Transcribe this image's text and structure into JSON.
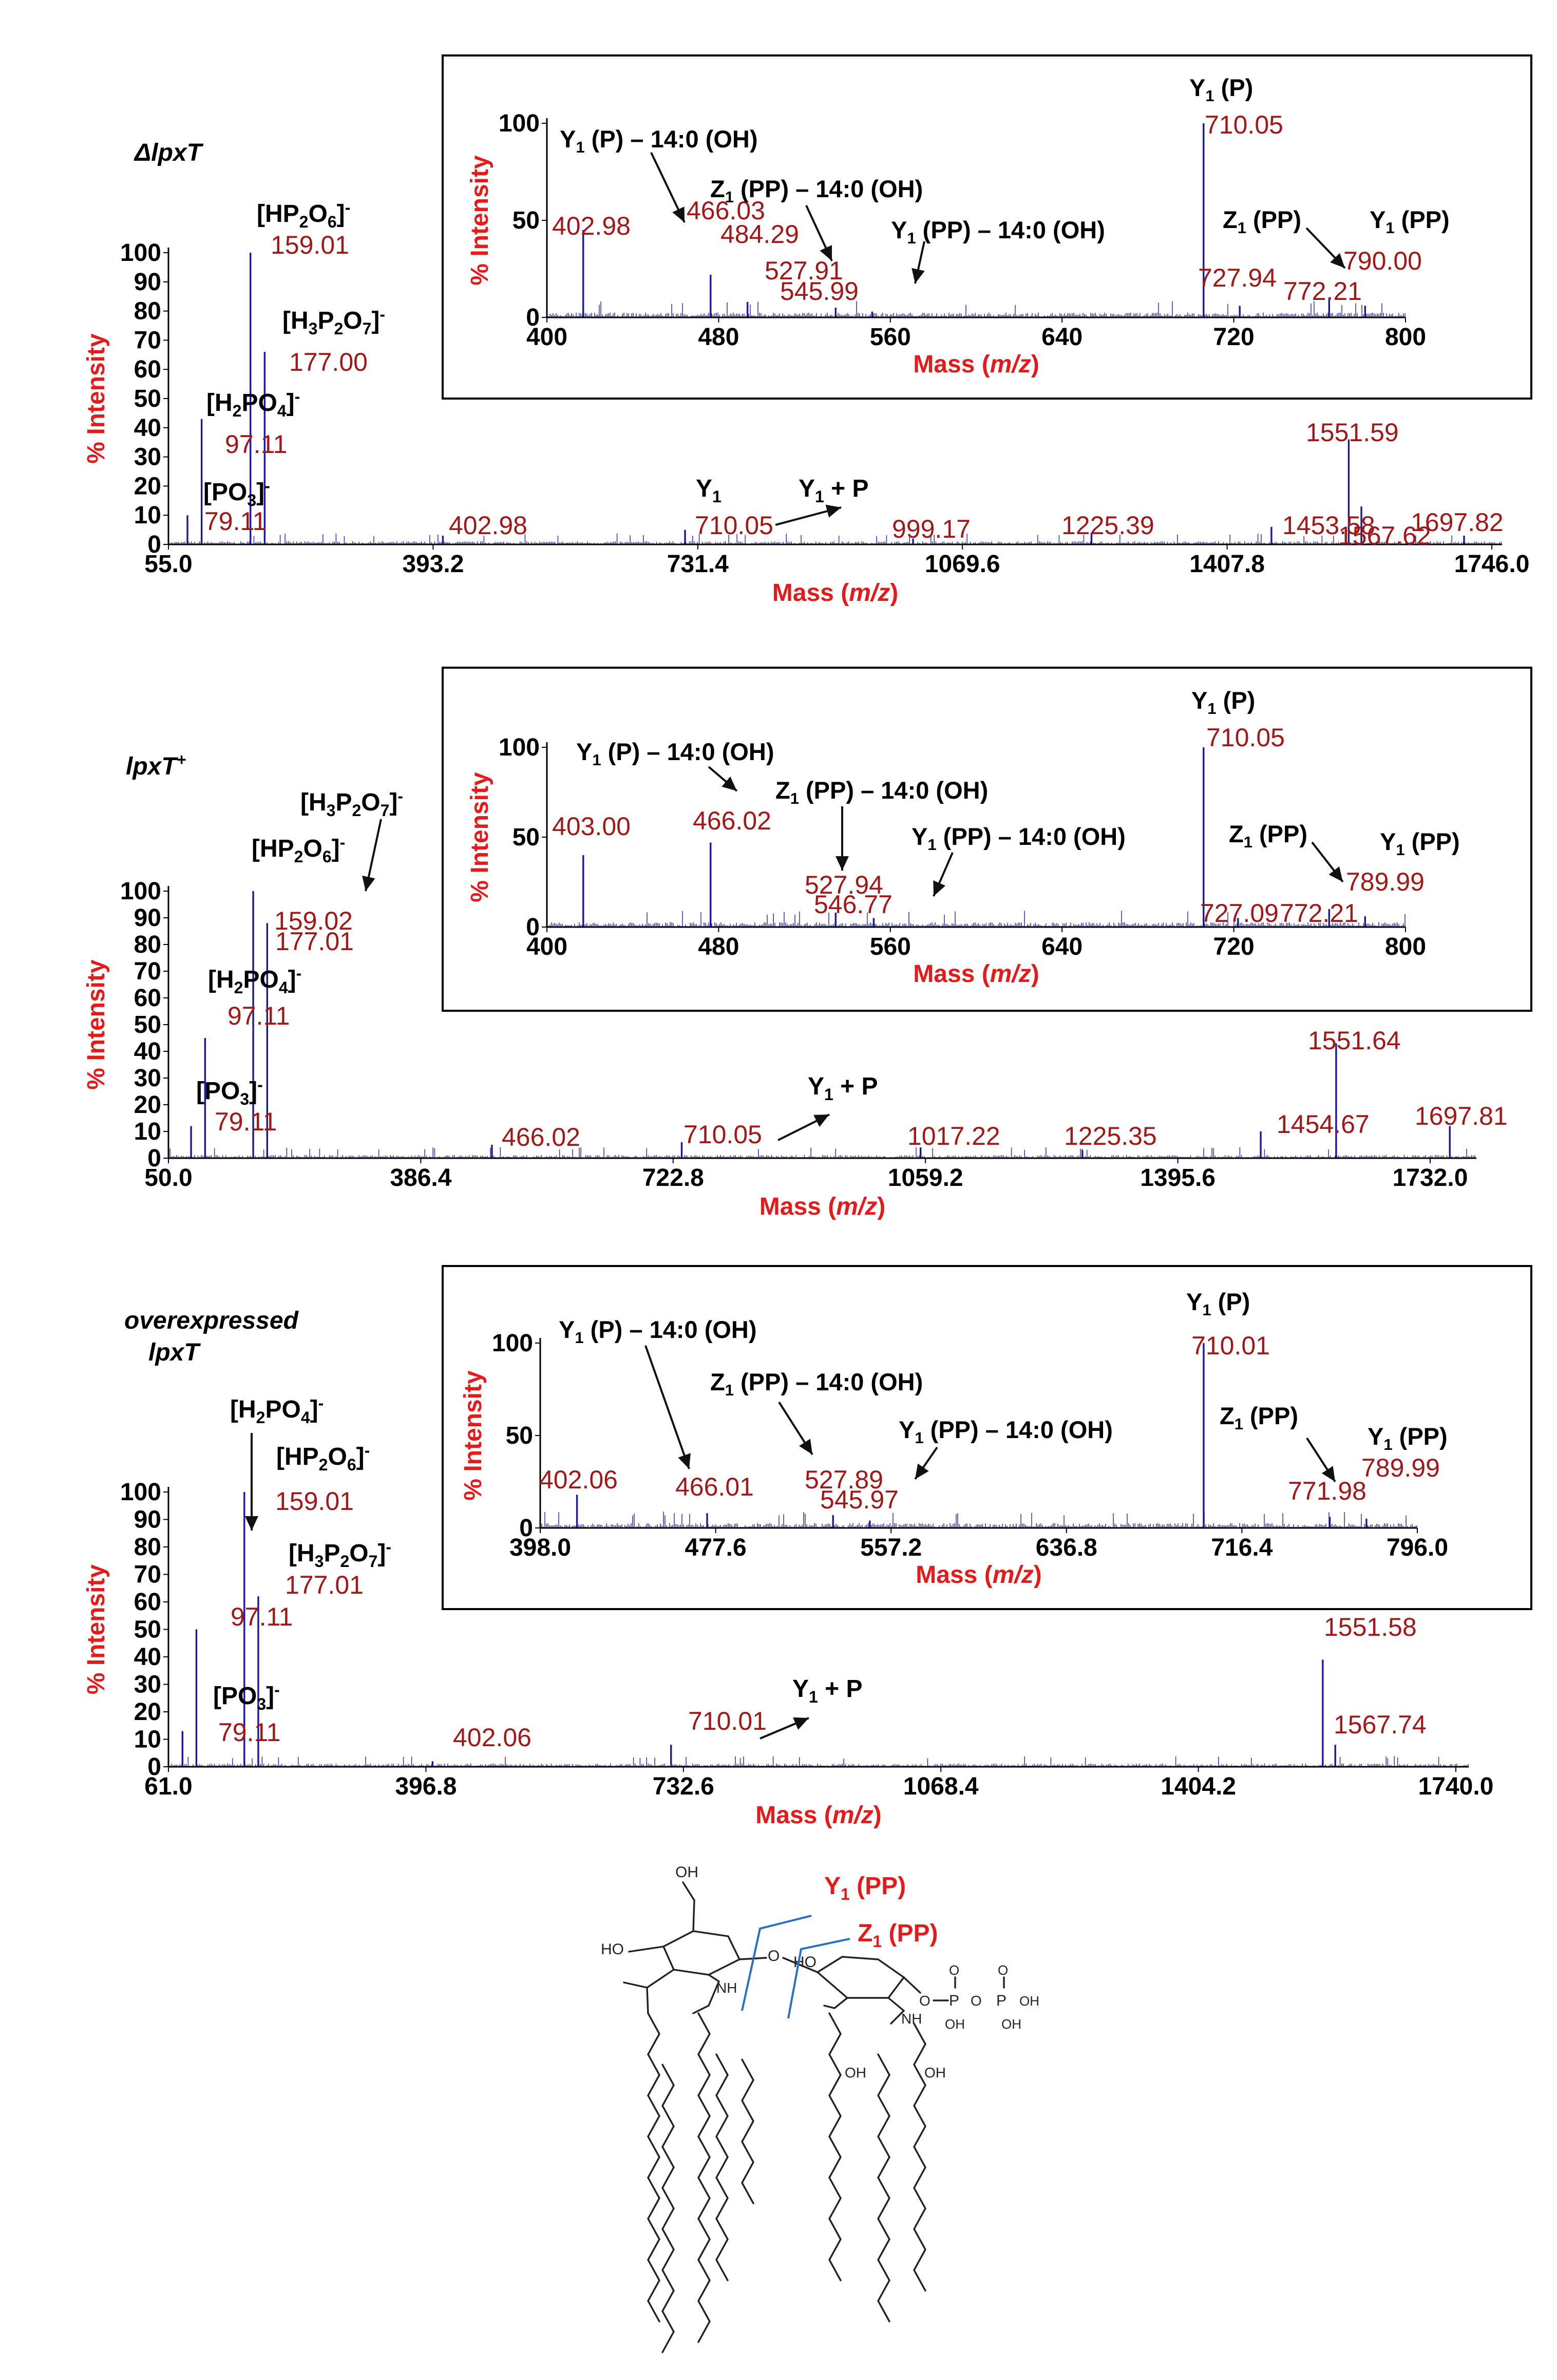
{
  "colors": {
    "spectrum": "#1a1a9a",
    "peak_label": "#a11818",
    "axis_title": "#e31b1b",
    "text": "#000000",
    "cleavage_line": "#2a6ec7",
    "structure": "#222222"
  },
  "chart_data": [
    {
      "type": "line",
      "title": "ΔlpxT",
      "xlabel": "Mass (m/z)",
      "ylabel": "% Intensity",
      "xlim": [
        55.0,
        1746.0
      ],
      "ylim": [
        0,
        100
      ],
      "x_ticks": [
        "55.0",
        "393.2",
        "731.4",
        "1069.6",
        "1407.8",
        "1746.0"
      ],
      "y_ticks": [
        "0",
        "10",
        "20",
        "30",
        "40",
        "50",
        "60",
        "70",
        "80",
        "90",
        "100"
      ],
      "peaks": [
        {
          "x": 79.11,
          "y": 10,
          "label": "79.11"
        },
        {
          "x": 97.11,
          "y": 43,
          "label": "97.11"
        },
        {
          "x": 159.01,
          "y": 100,
          "label": "159.01"
        },
        {
          "x": 177.0,
          "y": 66,
          "label": "177.00"
        },
        {
          "x": 402.98,
          "y": 3,
          "label": "402.98"
        },
        {
          "x": 710.05,
          "y": 5,
          "label": "710.05"
        },
        {
          "x": 999.17,
          "y": 2,
          "label": "999.17"
        },
        {
          "x": 1225.39,
          "y": 4,
          "label": "1225.39"
        },
        {
          "x": 1453.58,
          "y": 6,
          "label": "1453.58"
        },
        {
          "x": 1551.59,
          "y": 36,
          "label": "1551.59"
        },
        {
          "x": 1567.62,
          "y": 13,
          "label": "1567.62"
        },
        {
          "x": 1697.82,
          "y": 3,
          "label": "1697.82"
        }
      ],
      "annotations": [
        {
          "text": "[HP2O6]-"
        },
        {
          "text": "[H3P2O7]-"
        },
        {
          "text": "[H2PO4]-"
        },
        {
          "text": "[PO3]-"
        },
        {
          "text": "Y1"
        },
        {
          "text": "Y1 + P"
        }
      ],
      "inset": {
        "xlabel": "Mass (m/z)",
        "ylabel": "% Intensity",
        "xlim": [
          385,
          810
        ],
        "ylim": [
          0,
          100
        ],
        "x_ticks": [
          "400",
          "480",
          "560",
          "640",
          "720",
          "800"
        ],
        "y_ticks": [
          "0",
          "50",
          "100"
        ],
        "peaks": [
          {
            "x": 402.98,
            "y": 45,
            "label": "402.98"
          },
          {
            "x": 466.03,
            "y": 22,
            "label": "466.03"
          },
          {
            "x": 484.29,
            "y": 8,
            "label": "484.29"
          },
          {
            "x": 527.91,
            "y": 5,
            "label": "527.91"
          },
          {
            "x": 545.99,
            "y": 3,
            "label": "545.99"
          },
          {
            "x": 710.05,
            "y": 100,
            "label": "710.05"
          },
          {
            "x": 727.94,
            "y": 6,
            "label": "727.94"
          },
          {
            "x": 772.21,
            "y": 10,
            "label": "772.21"
          },
          {
            "x": 790.0,
            "y": 6,
            "label": "790.00"
          }
        ],
        "annotations": [
          {
            "text": "Y1 (P) – 14:0 (OH)"
          },
          {
            "text": "Z1 (PP) – 14:0 (OH)"
          },
          {
            "text": "Y1 (PP) – 14:0 (OH)"
          },
          {
            "text": "Y1 (P)"
          },
          {
            "text": "Z1 (PP)"
          },
          {
            "text": "Y1 (PP)"
          }
        ]
      }
    },
    {
      "type": "line",
      "title": "lpxT+",
      "xlabel": "Mass (m/z)",
      "ylabel": "% Intensity",
      "xlim": [
        50.0,
        1732.0
      ],
      "ylim": [
        0,
        100
      ],
      "x_ticks": [
        "50.0",
        "386.4",
        "722.8",
        "1059.2",
        "1395.6",
        "1732.0"
      ],
      "y_ticks": [
        "0",
        "10",
        "20",
        "30",
        "40",
        "50",
        "60",
        "70",
        "80",
        "90",
        "100"
      ],
      "peaks": [
        {
          "x": 79.11,
          "y": 12,
          "label": "79.11"
        },
        {
          "x": 97.11,
          "y": 45,
          "label": "97.11"
        },
        {
          "x": 159.02,
          "y": 100,
          "label": "159.02"
        },
        {
          "x": 177.01,
          "y": 88,
          "label": "177.01"
        },
        {
          "x": 466.02,
          "y": 5,
          "label": "466.02"
        },
        {
          "x": 710.05,
          "y": 6,
          "label": "710.05"
        },
        {
          "x": 1017.22,
          "y": 4,
          "label": "1017.22"
        },
        {
          "x": 1225.35,
          "y": 3,
          "label": "1225.35"
        },
        {
          "x": 1454.67,
          "y": 10,
          "label": "1454.67"
        },
        {
          "x": 1551.64,
          "y": 43,
          "label": "1551.64"
        },
        {
          "x": 1697.81,
          "y": 12,
          "label": "1697.81"
        }
      ],
      "annotations": [
        {
          "text": "[H3P2O7]-"
        },
        {
          "text": "[HP2O6]-"
        },
        {
          "text": "[H2PO4]-"
        },
        {
          "text": "[PO3]-"
        },
        {
          "text": "Y1 + P"
        }
      ],
      "inset": {
        "xlabel": "Mass (m/z)",
        "ylabel": "% Intensity",
        "xlim": [
          385,
          810
        ],
        "ylim": [
          0,
          100
        ],
        "x_ticks": [
          "400",
          "480",
          "560",
          "640",
          "720",
          "800"
        ],
        "y_ticks": [
          "0",
          "50",
          "100"
        ],
        "peaks": [
          {
            "x": 403.0,
            "y": 40,
            "label": "403.00"
          },
          {
            "x": 466.02,
            "y": 47,
            "label": "466.02"
          },
          {
            "x": 527.94,
            "y": 8,
            "label": "527.94"
          },
          {
            "x": 546.77,
            "y": 5,
            "label": "546.77"
          },
          {
            "x": 710.05,
            "y": 100,
            "label": "710.05"
          },
          {
            "x": 727.09,
            "y": 5,
            "label": "727.09"
          },
          {
            "x": 772.21,
            "y": 10,
            "label": "772.21"
          },
          {
            "x": 789.99,
            "y": 6,
            "label": "789.99"
          }
        ],
        "annotations": [
          {
            "text": "Y1 (P) – 14:0 (OH)"
          },
          {
            "text": "Z1 (PP) – 14:0 (OH)"
          },
          {
            "text": "Y1 (PP) – 14:0 (OH)"
          },
          {
            "text": "Y1 (P)"
          },
          {
            "text": "Z1 (PP)"
          },
          {
            "text": "Y1 (PP)"
          }
        ]
      }
    },
    {
      "type": "line",
      "title": "overexpressed lpxT",
      "xlabel": "Mass (m/z)",
      "ylabel": "% Intensity",
      "xlim": [
        61.0,
        1740.0
      ],
      "ylim": [
        0,
        100
      ],
      "x_ticks": [
        "61.0",
        "396.8",
        "732.6",
        "1068.4",
        "1404.2",
        "1740.0"
      ],
      "y_ticks": [
        "0",
        "10",
        "20",
        "30",
        "40",
        "50",
        "60",
        "70",
        "80",
        "90",
        "100"
      ],
      "peaks": [
        {
          "x": 79.11,
          "y": 13,
          "label": "79.11"
        },
        {
          "x": 97.11,
          "y": 50,
          "label": "97.11"
        },
        {
          "x": 159.01,
          "y": 100,
          "label": "159.01"
        },
        {
          "x": 177.01,
          "y": 62,
          "label": "177.01"
        },
        {
          "x": 402.06,
          "y": 2,
          "label": "402.06"
        },
        {
          "x": 710.01,
          "y": 8,
          "label": "710.01"
        },
        {
          "x": 1551.58,
          "y": 39,
          "label": "1551.58"
        },
        {
          "x": 1567.74,
          "y": 8,
          "label": "1567.74"
        }
      ],
      "annotations": [
        {
          "text": "[H2PO4]-"
        },
        {
          "text": "[HP2O6]-"
        },
        {
          "text": "[H3P2O7]-"
        },
        {
          "text": "[PO3]-"
        },
        {
          "text": "Y1 + P"
        }
      ],
      "inset": {
        "xlabel": "Mass (m/z)",
        "ylabel": "% Intensity",
        "xlim": [
          384,
          815
        ],
        "ylim": [
          0,
          100
        ],
        "x_ticks": [
          "398.0",
          "477.6",
          "557.2",
          "636.8",
          "716.4",
          "796.0"
        ],
        "y_ticks": [
          "0",
          "50",
          "100"
        ],
        "peaks": [
          {
            "x": 402.06,
            "y": 18,
            "label": "402.06"
          },
          {
            "x": 466.01,
            "y": 8,
            "label": "466.01"
          },
          {
            "x": 527.89,
            "y": 7,
            "label": "527.89"
          },
          {
            "x": 545.97,
            "y": 4,
            "label": "545.97"
          },
          {
            "x": 710.01,
            "y": 100,
            "label": "710.01"
          },
          {
            "x": 771.98,
            "y": 6,
            "label": "771.98"
          },
          {
            "x": 789.99,
            "y": 5,
            "label": "789.99"
          }
        ],
        "annotations": [
          {
            "text": "Y1 (P) – 14:0 (OH)"
          },
          {
            "text": "Z1 (PP) – 14:0 (OH)"
          },
          {
            "text": "Y1 (PP) – 14:0 (OH)"
          },
          {
            "text": "Y1 (P)"
          },
          {
            "text": "Z1 (PP)"
          },
          {
            "text": "Y1 (PP)"
          }
        ]
      }
    }
  ],
  "structure": {
    "labels": {
      "y1": "Y1 (PP)",
      "z1": "Z1 (PP)"
    },
    "atoms": {
      "oh_top": "OH",
      "ho_left": "HO",
      "ho_mid": "HO",
      "nh1": "NH",
      "nh2": "NH",
      "o_link": "O",
      "o_p": "O",
      "p1": "P",
      "p2": "P",
      "o_pp": "O",
      "oh_p1": "OH",
      "oh_p2a": "OH",
      "oh_p2b": "OH",
      "o_eq1": "O",
      "o_eq2": "O",
      "oh_chain1": "OH",
      "oh_chain2": "OH"
    }
  }
}
